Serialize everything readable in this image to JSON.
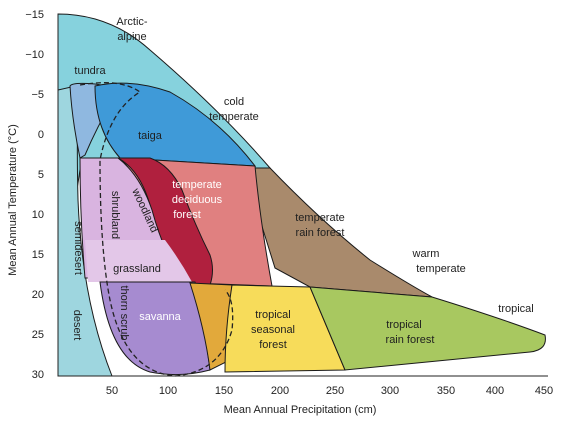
{
  "axes": {
    "x_label": "Mean Annual Precipitation (cm)",
    "y_label": "Mean Annual Temperature (°C)",
    "x_ticks": [
      "50",
      "100",
      "150",
      "200",
      "250",
      "300",
      "350",
      "400",
      "450"
    ],
    "y_ticks": [
      "−15",
      "−10",
      "−5",
      "0",
      "5",
      "10",
      "15",
      "20",
      "25",
      "30"
    ]
  },
  "regions": {
    "arctic_alpine": [
      "Arctic-",
      "alpine"
    ],
    "tundra": "tundra",
    "taiga": "taiga",
    "cold_temperate": [
      "cold",
      "temperate"
    ],
    "temperate_deciduous": [
      "temperate",
      "deciduous",
      "forest"
    ],
    "woodland": "woodland",
    "shrubland": "shrubland",
    "temperate_rain": [
      "temperate",
      "rain forest"
    ],
    "warm_temperate": [
      "warm",
      "temperate"
    ],
    "grassland": "grassland",
    "semidesert": "semidesert",
    "desert": "desert",
    "thorn_scrub": "thorn scrub",
    "savanna": "savanna",
    "tropical_seasonal": [
      "tropical",
      "seasonal",
      "forest"
    ],
    "tropical": "tropical",
    "tropical_rain": [
      "tropical",
      "rain forest"
    ]
  },
  "colors": {
    "arctic": "#7fd1dc",
    "taiga": "#3f9ad8",
    "tundra_inner": "#8fb8e0",
    "deciduous": "#e08080",
    "woodland": "#b0203e",
    "shrubland": "#d9b4e0",
    "temperate_rain": "#a98a6c",
    "grassland": "#e3c7e8",
    "savanna": "#a68bd0",
    "thorn_orange": "#e2a93b",
    "tropical_seasonal": "#f7dc5a",
    "tropical_rain": "#a8c860",
    "semidesert": "#9ed6df"
  }
}
